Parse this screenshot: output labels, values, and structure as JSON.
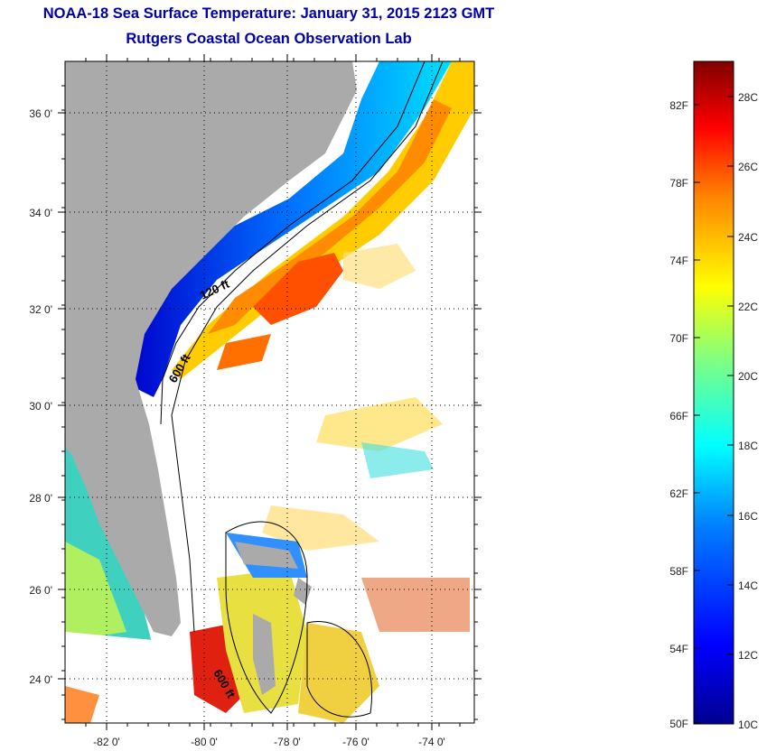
{
  "header": {
    "title": "NOAA-18 Sea Surface Temperature:  January 31, 2015 2123 GMT",
    "subtitle": "Rutgers Coastal Ocean Observation Lab"
  },
  "map": {
    "lat_ticks": [
      "36 0'",
      "34 0'",
      "32 0'",
      "30 0'",
      "28 0'",
      "26 0'",
      "24 0'"
    ],
    "lon_ticks": [
      "-82 0'",
      "-80 0'",
      "-78 0'",
      "-76 0'",
      "-74 0'"
    ],
    "contour_labels": [
      "120 ft",
      "600 ft",
      "600 ft"
    ],
    "land_color": "#aaaaaa"
  },
  "colorbar": {
    "fahrenheit_labels": [
      "82F",
      "78F",
      "74F",
      "70F",
      "66F",
      "62F",
      "58F",
      "54F",
      "50F"
    ],
    "celsius_labels": [
      "28C",
      "26C",
      "24C",
      "22C",
      "20C",
      "18C",
      "16C",
      "14C",
      "12C",
      "10C"
    ],
    "range_c": [
      10,
      29
    ],
    "colors": [
      "#00008f",
      "#0000ff",
      "#0080ff",
      "#00ffff",
      "#80ff80",
      "#ffff00",
      "#ff8000",
      "#ff0000",
      "#800000"
    ]
  }
}
